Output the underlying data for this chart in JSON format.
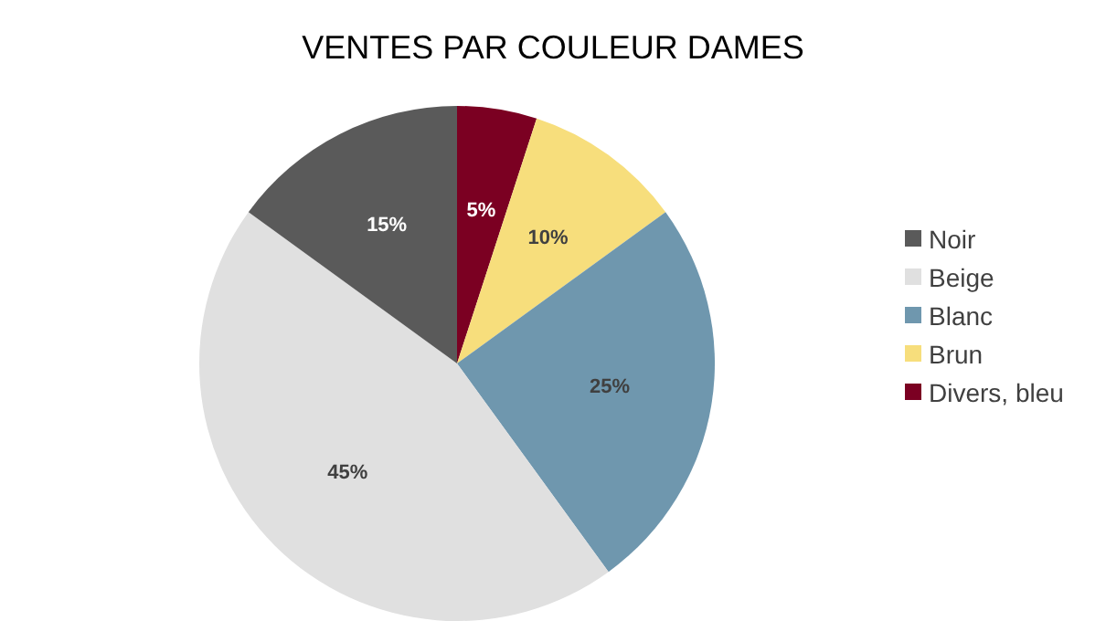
{
  "chart_data": {
    "type": "pie",
    "title": "VENTES PAR COULEUR DAMES",
    "categories": [
      "Noir",
      "Beige",
      "Blanc",
      "Brun",
      "Divers, bleu"
    ],
    "values": [
      15,
      45,
      25,
      10,
      5
    ],
    "value_labels": [
      "15%",
      "45%",
      "25%",
      "10%",
      "5%"
    ],
    "colors": [
      "#5a5a5a",
      "#e0e0e0",
      "#6f97ae",
      "#f7de7c",
      "#7b0022"
    ],
    "legend": "right"
  }
}
